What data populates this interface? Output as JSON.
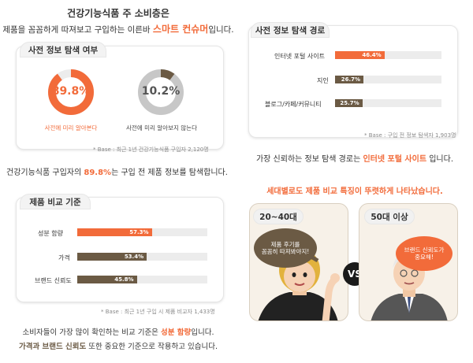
{
  "colors": {
    "orange": "#f26b3a",
    "brown": "#6b5a44",
    "gray": "#c7c7c7",
    "track": "#ececec"
  },
  "left": {
    "heading_line1": "건강기능식품 주 소비층은",
    "heading_line2_prefix": "제품을 꼼꼼하게 따져보고 구입하는 이른바 ",
    "heading_line2_highlight": "스마트 컨슈머",
    "heading_line2_suffix": "입니다.",
    "panel1": {
      "tab": "사전 정보 탐색 여부",
      "donut1": {
        "value": "89.8%",
        "fraction": 0.898,
        "caption": "사전에 미리 알아본다"
      },
      "donut2": {
        "value": "10.2%",
        "fraction": 0.102,
        "caption": "사전에 미리 알아보지 않는다"
      },
      "footnote": "* Base : 최근 1년 건강기능식품 구입자 2,120명"
    },
    "statement_prefix": "건강기능식품 구입자의 ",
    "statement_highlight": "89.8%",
    "statement_suffix": "는 구입 전 제품 정보를 탐색합니다.",
    "panel2": {
      "tab": "제품 비교 기준",
      "bars": [
        {
          "label": "성분 함량",
          "value": "57.3%",
          "fraction": 0.573,
          "color": "#f26b3a"
        },
        {
          "label": "가격",
          "value": "53.4%",
          "fraction": 0.534,
          "color": "#6b5a44"
        },
        {
          "label": "브랜드 신뢰도",
          "value": "45.8%",
          "fraction": 0.458,
          "color": "#6b5a44"
        }
      ],
      "footnote": "* Base : 최근 1년 구입 시 제품 비교자 1,433명"
    },
    "bottom_line1_prefix": "소비자들이 가장 많이 확인하는 비교 기준은 ",
    "bottom_line1_highlight": "성분 함량",
    "bottom_line1_suffix": "입니다.",
    "bottom_line2_highlight": "가격과 브랜드 신뢰도",
    "bottom_line2_suffix": " 또한 중요한 기준으로 작용하고 있습니다."
  },
  "right": {
    "panel": {
      "tab": "사전 정보 탐색 경로",
      "bars": [
        {
          "label": "인터넷 포털 사이트",
          "value": "46.4%",
          "fraction": 0.464,
          "color": "#f26b3a"
        },
        {
          "label": "지인",
          "value": "26.7%",
          "fraction": 0.267,
          "color": "#6b5a44"
        },
        {
          "label": "블로그/카페/커뮤니티",
          "value": "25.7%",
          "fraction": 0.257,
          "color": "#6b5a44"
        }
      ],
      "footnote": "* Base : 구입 전 정보 탐색자 1,903명"
    },
    "statement_prefix": "가장 신뢰하는 정보 탐색 경로는 ",
    "statement_highlight": "인터넷 포털 사이트",
    "statement_suffix": " 입니다.",
    "generation_heading": "세대별로도 제품 비교 특징이 뚜렷하게 나타났습니다.",
    "compare": {
      "left_tab": "20~40대",
      "left_bubble": "제품 후기를\n꼼꼼히 따져봐야지!",
      "vs": "VS",
      "right_tab": "50대 이상",
      "right_bubble": "브랜드 신뢰도가\n중요해!"
    }
  }
}
